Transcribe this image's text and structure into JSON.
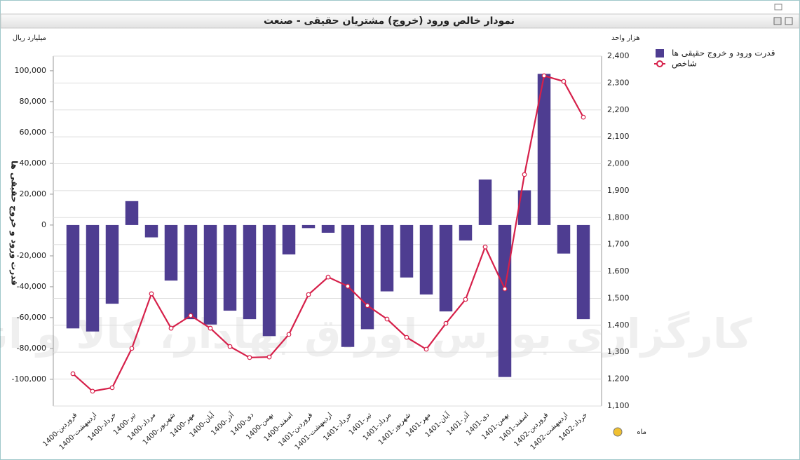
{
  "chart_data": {
    "type": "bar-line",
    "title": "نمودار خالص ورود (خروج) مشتریان حقیقی - صنعت",
    "y_unit": "میلیارد ریال",
    "y2_unit": "هزار واحد",
    "y_label": "قدرت ورود و خروج حقیقی ها",
    "x_label": "ماه",
    "watermark": "کارگزاری بورس اوراق بهادار، کالا و انرژی",
    "categories": [
      "1400-فروردین",
      "1400-اردیبهشت",
      "1400-خرداد",
      "1400-تیر",
      "1400-مرداد",
      "1400-شهریور",
      "1400-مهر",
      "1400-آبان",
      "1400-آذر",
      "1400-دی",
      "1400-بهمن",
      "1400-اسفند",
      "1401-فروردین",
      "1401-اردیبهشت",
      "1401-خرداد",
      "1401-تیر",
      "1401-مرداد",
      "1401-شهریور",
      "1401-مهر",
      "1401-آبان",
      "1401-آذر",
      "1401-دی",
      "1401-بهمن",
      "1401-اسفند",
      "1402-فروردین",
      "1402-اردیبهشت",
      "1402-خرداد"
    ],
    "series": [
      {
        "name": "قدرت ورود و خروج حقیقی ها",
        "type": "bar",
        "color": "#4e3d91",
        "axis": "y",
        "values": [
          -67000,
          -69000,
          -51000,
          15500,
          -8000,
          -36000,
          -61000,
          -64500,
          -55500,
          -61000,
          -72000,
          -19000,
          -2000,
          -5000,
          -79000,
          -67500,
          -43000,
          -34000,
          -45000,
          -56000,
          -10000,
          29500,
          -98500,
          22500,
          98000,
          -18500,
          -61000
        ]
      },
      {
        "name": "شاخص",
        "type": "line",
        "color": "#d6204a",
        "axis": "y2",
        "values": [
          1220,
          1155,
          1168,
          1314,
          1517,
          1389,
          1436,
          1389,
          1321,
          1280,
          1282,
          1366,
          1514,
          1579,
          1545,
          1473,
          1423,
          1355,
          1311,
          1407,
          1496,
          1691,
          1535,
          1960,
          2327,
          2306,
          2173
        ]
      }
    ],
    "ylim": [
      -117300,
      109500
    ],
    "yticks": [
      {
        "value": 100000,
        "label": "100,000"
      },
      {
        "value": 80000,
        "label": "80,000"
      },
      {
        "value": 60000,
        "label": "60,000"
      },
      {
        "value": 40000,
        "label": "40,000"
      },
      {
        "value": 20000,
        "label": "20,000"
      },
      0,
      {
        "value": -20000,
        "label": "-20,000"
      },
      {
        "value": -40000,
        "label": "-40,000"
      },
      {
        "value": -60000,
        "label": "-60,000"
      },
      {
        "value": -80000,
        "label": "-80,000"
      },
      {
        "value": -100000,
        "label": "-100,000"
      }
    ],
    "y2lim": [
      1100,
      2400
    ],
    "y2ticks": [
      {
        "value": 2400,
        "label": "2,400"
      },
      {
        "value": 2300,
        "label": "2,300"
      },
      {
        "value": 2200,
        "label": "2,200"
      },
      {
        "value": 2100,
        "label": "2,100"
      },
      {
        "value": 2000,
        "label": "2,000"
      },
      {
        "value": 1900,
        "label": "1,900"
      },
      {
        "value": 1800,
        "label": "1,800"
      },
      {
        "value": 1700,
        "label": "1,700"
      },
      {
        "value": 1600,
        "label": "1,600"
      },
      {
        "value": 1500,
        "label": "1,500"
      },
      {
        "value": 1400,
        "label": "1,400"
      },
      {
        "value": 1300,
        "label": "1,300"
      },
      {
        "value": 1200,
        "label": "1,200"
      },
      {
        "value": 1100,
        "label": "1,100"
      }
    ],
    "grid": true
  }
}
